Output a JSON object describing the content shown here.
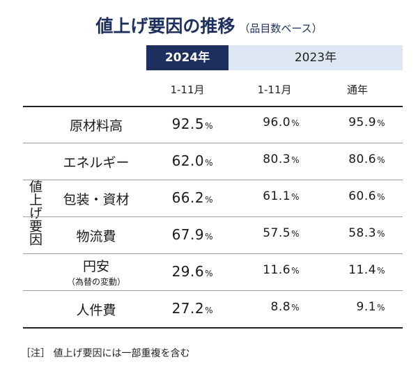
{
  "title": "値上げ要因の推移",
  "subtitle": "（品目数ベース）",
  "headers": {
    "year_2024": "2024年",
    "year_2023": "2023年",
    "sub": [
      "1-11月",
      "1-11月",
      "通年"
    ]
  },
  "side_label": "値上げ要因",
  "chart_data": {
    "type": "table",
    "title": "値上げ要因の推移",
    "unit": "%",
    "columns": [
      "2024年 1-11月",
      "2023年 1-11月",
      "2023年 通年"
    ],
    "rows": [
      {
        "label": "原材料高",
        "note": "",
        "values": [
          "92.5",
          "96.0",
          "95.9"
        ]
      },
      {
        "label": "エネルギー",
        "note": "",
        "values": [
          "62.0",
          "80.3",
          "80.6"
        ]
      },
      {
        "label": "包装・資材",
        "note": "",
        "values": [
          "66.2",
          "61.1",
          "60.6"
        ]
      },
      {
        "label": "物流費",
        "note": "",
        "values": [
          "67.9",
          "57.5",
          "58.3"
        ]
      },
      {
        "label": "円安",
        "note": "（為替の変動）",
        "values": [
          "29.6",
          "11.6",
          "11.4"
        ]
      },
      {
        "label": "人件費",
        "note": "",
        "values": [
          "27.2",
          "8.8",
          "9.1"
        ]
      }
    ]
  },
  "footnote": "［注］ 値上げ要因には一部重複を含む",
  "colors": {
    "accent": "#1c2f5e",
    "light": "#dde7f3"
  }
}
